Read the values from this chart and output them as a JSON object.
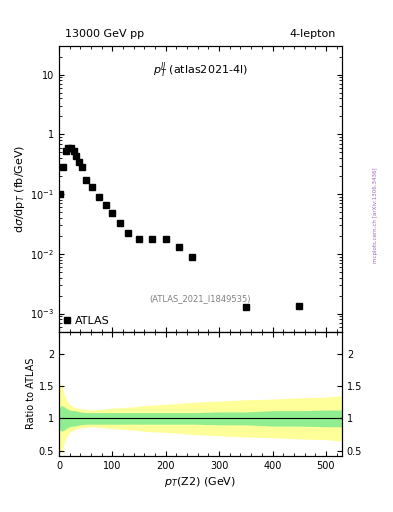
{
  "title_left": "13000 GeV pp",
  "title_right": "4-lepton",
  "annotation_main": "$p_T^{ll}$ (atlas2021-4l)",
  "annotation_ref": "(ATLAS_2021_I1849535)",
  "watermark": "mcplots.cern.ch [arXiv:1306.3436]",
  "xlabel": "$p_T$(Z2) (GeV)",
  "ylabel_main": "d$\\sigma$/dp$_T$ (fb/GeV)",
  "ylabel_ratio": "Ratio to ATLAS",
  "legend_label": "ATLAS",
  "xlim": [
    0,
    530
  ],
  "ylim_main": [
    0.0005,
    30
  ],
  "ylim_ratio": [
    0.42,
    2.35
  ],
  "data_x": [
    2.5,
    7.5,
    12.5,
    17.5,
    22.5,
    27.5,
    32.5,
    37.5,
    42.5,
    50,
    62.5,
    75,
    87.5,
    100,
    115,
    130,
    150,
    175,
    200,
    225,
    250,
    350,
    450
  ],
  "data_y": [
    0.1,
    0.28,
    0.52,
    0.6,
    0.58,
    0.52,
    0.43,
    0.35,
    0.28,
    0.175,
    0.13,
    0.09,
    0.065,
    0.048,
    0.033,
    0.022,
    0.018,
    0.018,
    0.018,
    0.013,
    0.009,
    0.0013,
    0.00135
  ],
  "ratio_x": [
    0,
    2,
    5,
    10,
    15,
    20,
    25,
    30,
    40,
    50,
    60,
    75,
    90,
    100,
    120,
    140,
    160,
    180,
    200,
    220,
    250,
    300,
    350,
    400,
    450,
    500,
    525,
    530
  ],
  "ratio_green_upper": [
    1.15,
    1.18,
    1.2,
    1.18,
    1.15,
    1.13,
    1.12,
    1.12,
    1.1,
    1.09,
    1.09,
    1.09,
    1.09,
    1.09,
    1.09,
    1.09,
    1.09,
    1.09,
    1.09,
    1.09,
    1.09,
    1.1,
    1.1,
    1.12,
    1.12,
    1.13,
    1.13,
    1.13
  ],
  "ratio_green_lower": [
    0.85,
    0.82,
    0.8,
    0.82,
    0.85,
    0.87,
    0.88,
    0.88,
    0.9,
    0.91,
    0.91,
    0.91,
    0.91,
    0.91,
    0.91,
    0.91,
    0.91,
    0.91,
    0.91,
    0.91,
    0.91,
    0.9,
    0.9,
    0.88,
    0.88,
    0.87,
    0.87,
    0.87
  ],
  "ratio_yellow_upper": [
    1.45,
    1.5,
    1.55,
    1.38,
    1.28,
    1.22,
    1.19,
    1.17,
    1.15,
    1.14,
    1.13,
    1.14,
    1.15,
    1.16,
    1.17,
    1.18,
    1.2,
    1.21,
    1.22,
    1.23,
    1.25,
    1.27,
    1.29,
    1.3,
    1.32,
    1.33,
    1.35,
    1.35
  ],
  "ratio_yellow_lower": [
    0.55,
    0.5,
    0.45,
    0.62,
    0.72,
    0.78,
    0.81,
    0.83,
    0.85,
    0.86,
    0.87,
    0.86,
    0.85,
    0.84,
    0.83,
    0.82,
    0.8,
    0.79,
    0.78,
    0.77,
    0.75,
    0.73,
    0.71,
    0.7,
    0.68,
    0.67,
    0.65,
    0.65
  ],
  "green_color": "#90EE90",
  "yellow_color": "#FFFF99",
  "marker_color": "black",
  "marker_size": 4,
  "marker_style": "s",
  "yticks_main": [
    0.001,
    0.01,
    0.1,
    1,
    10
  ],
  "ytick_labels_main": [
    "$10^{-3}$",
    "$10^{-2}$",
    "$10^{-1}$",
    "1",
    "10"
  ],
  "xticks": [
    0,
    100,
    200,
    300,
    400,
    500
  ],
  "yticks_ratio": [
    0.5,
    1.0,
    1.5,
    2.0
  ],
  "ytick_labels_ratio": [
    "0.5",
    "1",
    "1.5",
    "2"
  ]
}
